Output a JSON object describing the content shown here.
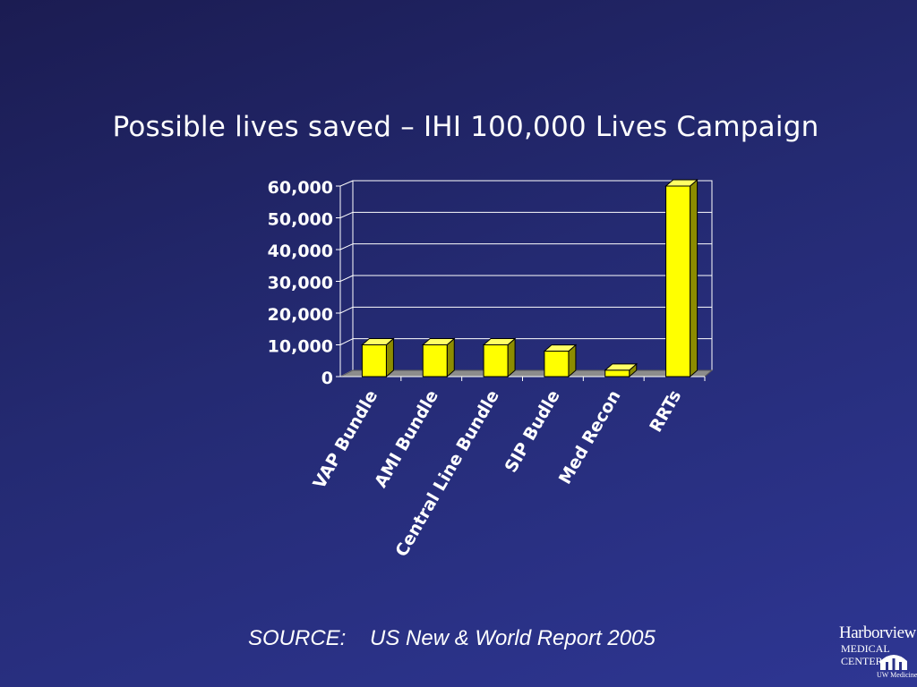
{
  "slide": {
    "title": "Possible lives saved – IHI 100,000 Lives Campaign",
    "source": "SOURCE:    US New & World Report 2005"
  },
  "logo": {
    "line1": "Harborview",
    "line2": "MEDICAL",
    "line3": "CENTER",
    "line4": "UW Medicine"
  },
  "colors": {
    "bar_face": "#ffff00",
    "bar_top": "#ffff66",
    "bar_side": "#8c8c00",
    "text": "#ffffff",
    "gridline": "#ffffff"
  },
  "chart_data": {
    "type": "bar",
    "categories": [
      "VAP Bundle",
      "AMI Bundle",
      "Central Line Bundle",
      "SIP Budle",
      "Med Recon",
      "RRTs"
    ],
    "values": [
      10000,
      10000,
      10000,
      8000,
      2000,
      60000
    ],
    "yticks": [
      "0",
      "10,000",
      "20,000",
      "30,000",
      "40,000",
      "50,000",
      "60,000"
    ],
    "ylim": [
      0,
      60000
    ],
    "grid": true,
    "three_d": true
  }
}
